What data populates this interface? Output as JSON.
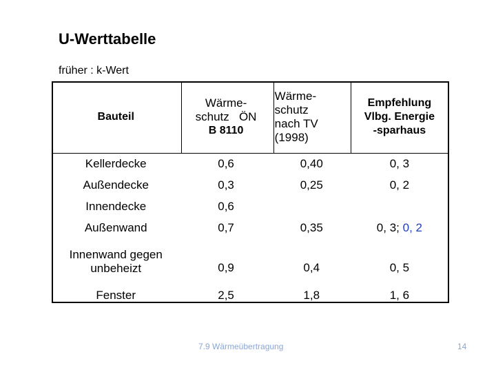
{
  "title": "U-Werttabelle",
  "subtitle": "früher : k-Wert",
  "table": {
    "headers": {
      "bauteil": "Bauteil",
      "oen_line1": "Wärme-",
      "oen_line2": "schutz   ÖN",
      "oen_line3": "B 8110",
      "tv_line1": "Wärme-",
      "tv_line2": "schutz",
      "tv_line3": "nach TV",
      "tv_line4": "(1998)",
      "empf_line1": "Empfehlung",
      "empf_line2": "Vlbg. Energie",
      "empf_line3": "-sparhaus"
    },
    "rows": [
      {
        "bauteil": "Kellerdecke",
        "oen": "0,6",
        "tv": "0,40",
        "empf": "0, 3"
      },
      {
        "bauteil": "Außendecke",
        "oen": "0,3",
        "tv": "0,25",
        "empf": "0, 2"
      },
      {
        "bauteil": "Innendecke",
        "oen": "0,6",
        "tv": "",
        "empf": ""
      },
      {
        "bauteil": "Außenwand",
        "oen": "0,7",
        "tv": "0,35",
        "empf": "0, 3;",
        "empf_extra": "0, 2"
      },
      {
        "bauteil_line1": "Innenwand gegen",
        "bauteil_line2": "unbeheizt",
        "oen": "0,9",
        "tv": "0,4",
        "empf": "0, 5"
      },
      {
        "bauteil": "Fenster",
        "oen": "2,5",
        "tv": "1,8",
        "empf": "1, 6"
      }
    ]
  },
  "footer": "7.9 Wärmeübertragung",
  "page_number": "14",
  "colors": {
    "highlight": "#1f3fbf",
    "footer": "#8aa6d8"
  }
}
